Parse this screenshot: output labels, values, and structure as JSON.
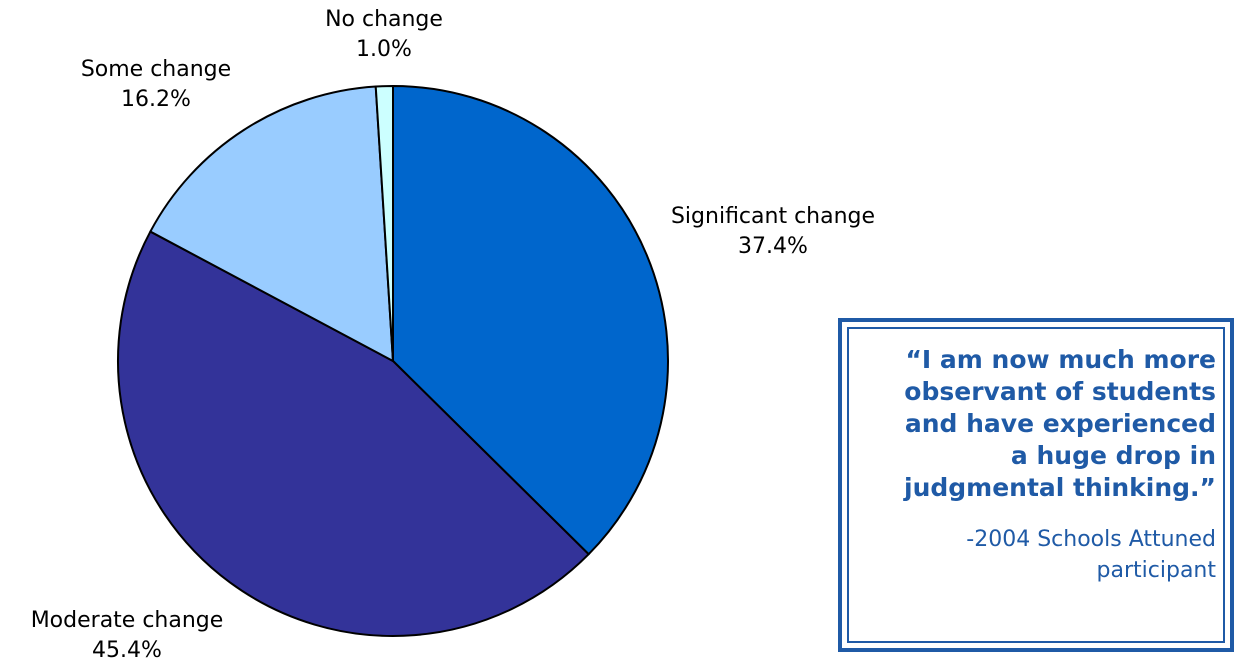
{
  "chart_data": {
    "type": "pie",
    "title": "",
    "slices": [
      {
        "label": "Significant change",
        "value": 37.4,
        "value_label": "37.4%",
        "color": "#0066cc"
      },
      {
        "label": "Moderate change",
        "value": 45.4,
        "value_label": "45.4%",
        "color": "#333399"
      },
      {
        "label": "Some change",
        "value": 16.2,
        "value_label": "16.2%",
        "color": "#99ccff"
      },
      {
        "label": "No change",
        "value": 1.0,
        "value_label": "1.0%",
        "color": "#ccffff"
      }
    ],
    "start": "12 o'clock",
    "direction": "clockwise"
  },
  "quote": {
    "lines": [
      "“I am now much more",
      "observant of students",
      "and have experienced",
      "a huge drop in",
      "judgmental thinking.”"
    ],
    "attribution_lines": [
      "-2004 Schools Attuned",
      "participant"
    ],
    "color": "#1f5aa6"
  }
}
